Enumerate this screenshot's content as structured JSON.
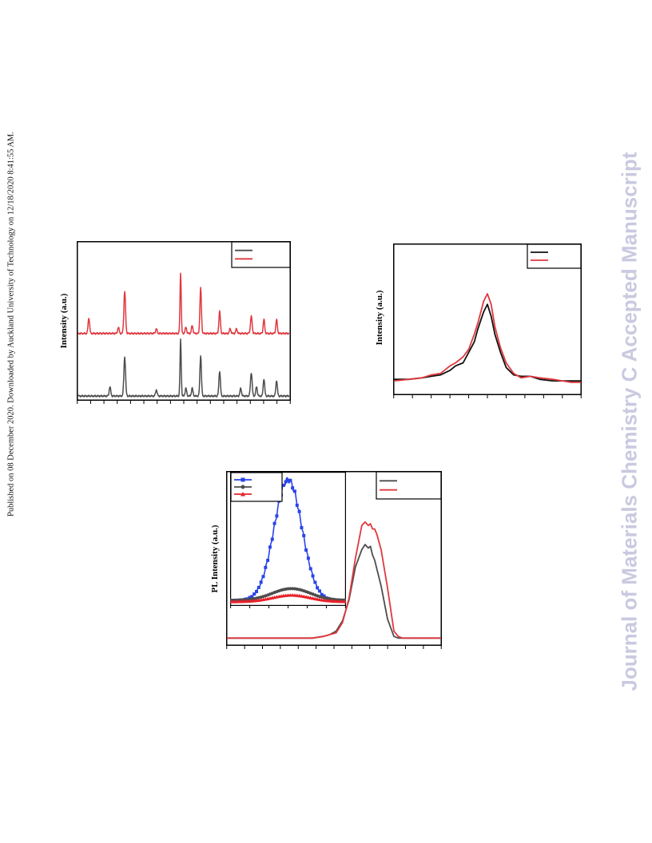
{
  "side_note": "Published on 08 December 2020. Downloaded by Auckland University of Technology on 12/18/2020 8:41:55 AM.",
  "watermark": "Journal of Materials Chemistry C Accepted Manuscript",
  "colors": {
    "black": "#111111",
    "gray": "#4d4d4d",
    "red": "#e0383e",
    "blue": "#2a44e8"
  },
  "chart_data": [
    {
      "type": "line",
      "title": "",
      "xlabel": "",
      "ylabel": "Intensity (a.u.)",
      "xlim": [
        0,
        100
      ],
      "ylim": [
        0,
        100
      ],
      "x_ticks": 16,
      "grid": false,
      "legend": "top-right",
      "series": [
        {
          "color": "#4d4d4d",
          "baseline": 2,
          "peaks": [
            [
              15,
              6,
              0.5
            ],
            [
              22,
              25,
              0.55
            ],
            [
              37,
              4,
              0.5
            ],
            [
              48.5,
              36,
              0.4
            ],
            [
              51,
              5,
              0.5
            ],
            [
              54,
              5,
              0.5
            ],
            [
              58,
              26,
              0.5
            ],
            [
              67,
              16,
              0.5
            ],
            [
              77,
              5,
              0.5
            ],
            [
              82,
              15,
              0.55
            ],
            [
              84.5,
              6,
              0.5
            ],
            [
              88,
              11,
              0.5
            ],
            [
              94,
              10,
              0.5
            ]
          ]
        },
        {
          "color": "#e0383e",
          "baseline": 42,
          "peaks": [
            [
              5,
              10,
              0.5
            ],
            [
              19,
              4,
              0.5
            ],
            [
              22,
              27,
              0.55
            ],
            [
              37,
              3,
              0.5
            ],
            [
              48.5,
              39,
              0.4
            ],
            [
              51,
              4,
              0.5
            ],
            [
              54,
              5,
              0.5
            ],
            [
              58,
              29,
              0.5
            ],
            [
              67,
              14,
              0.5
            ],
            [
              72,
              3,
              0.5
            ],
            [
              75,
              3,
              0.5
            ],
            [
              82,
              11,
              0.55
            ],
            [
              88,
              9,
              0.5
            ],
            [
              94,
              9,
              0.5
            ]
          ]
        }
      ]
    },
    {
      "type": "line",
      "title": "",
      "xlabel": "",
      "ylabel": "Intensity (a.u.)",
      "xlim": [
        0,
        100
      ],
      "ylim": [
        0,
        100
      ],
      "x_ticks": 10,
      "grid": false,
      "legend": "top-right",
      "series": [
        {
          "color": "#111111",
          "x": [
            0,
            8,
            15,
            20,
            25,
            30,
            33,
            37,
            40,
            43,
            45,
            48,
            50,
            52,
            54,
            57,
            60,
            64,
            68,
            73,
            78,
            85,
            90,
            95,
            100
          ],
          "y": [
            10,
            10,
            11,
            12,
            13,
            16,
            19,
            21,
            28,
            35,
            44,
            55,
            60,
            52,
            40,
            28,
            18,
            13,
            12,
            12,
            10,
            9,
            9,
            9,
            9
          ]
        },
        {
          "color": "#e0383e",
          "x": [
            0,
            8,
            15,
            20,
            25,
            30,
            33,
            37,
            40,
            43,
            45,
            48,
            50,
            52,
            54,
            57,
            60,
            64,
            68,
            73,
            78,
            85,
            90,
            95,
            100
          ],
          "y": [
            9,
            10,
            11,
            13,
            14,
            19,
            21,
            25,
            30,
            40,
            48,
            62,
            67,
            60,
            45,
            31,
            21,
            14,
            11,
            12,
            11,
            10,
            9,
            8,
            8
          ]
        }
      ]
    },
    {
      "type": "line",
      "title": "",
      "xlabel": "",
      "ylabel": "PL Intensity (a.u.)",
      "xlim": [
        0,
        100
      ],
      "ylim": [
        0,
        100
      ],
      "x_ticks": 12,
      "grid": false,
      "legend": "top-right",
      "series": [
        {
          "color": "#4d4d4d",
          "x": [
            0,
            20,
            40,
            45,
            48,
            51,
            54,
            57,
            60,
            63,
            64.5,
            66,
            67,
            68,
            69,
            70,
            72,
            75,
            78,
            80,
            82,
            84,
            100
          ],
          "y": [
            4,
            4,
            4,
            5,
            6,
            8,
            14,
            26,
            45,
            55,
            58,
            56,
            57,
            52,
            49,
            44,
            34,
            15,
            5,
            4,
            4,
            4,
            4
          ]
        },
        {
          "color": "#e0383e",
          "x": [
            0,
            20,
            40,
            45,
            48,
            51,
            54,
            57,
            60,
            63,
            64.5,
            66,
            67,
            68,
            69,
            70,
            72,
            75,
            78,
            80,
            82,
            84,
            100
          ],
          "y": [
            4,
            4,
            4,
            5,
            6,
            7,
            13,
            27,
            50,
            69,
            71,
            69,
            70,
            67,
            67,
            64,
            55,
            33,
            8,
            5,
            4,
            4,
            4
          ]
        }
      ]
    },
    {
      "type": "line",
      "title": "",
      "xlabel": "",
      "ylabel": "",
      "xlim": [
        0,
        100
      ],
      "ylim": [
        0,
        100
      ],
      "x_ticks": 6,
      "grid": false,
      "legend": "top-left",
      "series": [
        {
          "color": "#2a44e8",
          "marker": "square",
          "peak_x": 50,
          "peak_y": 95,
          "base_y": 3,
          "width": 22
        },
        {
          "color": "#4d4d4d",
          "marker": "circle",
          "peak_x": 53,
          "peak_y": 12,
          "base_y": 3,
          "width": 30
        },
        {
          "color": "#e8222a",
          "marker": "triangle",
          "peak_x": 53,
          "peak_y": 7,
          "base_y": 2,
          "width": 30
        }
      ]
    }
  ]
}
